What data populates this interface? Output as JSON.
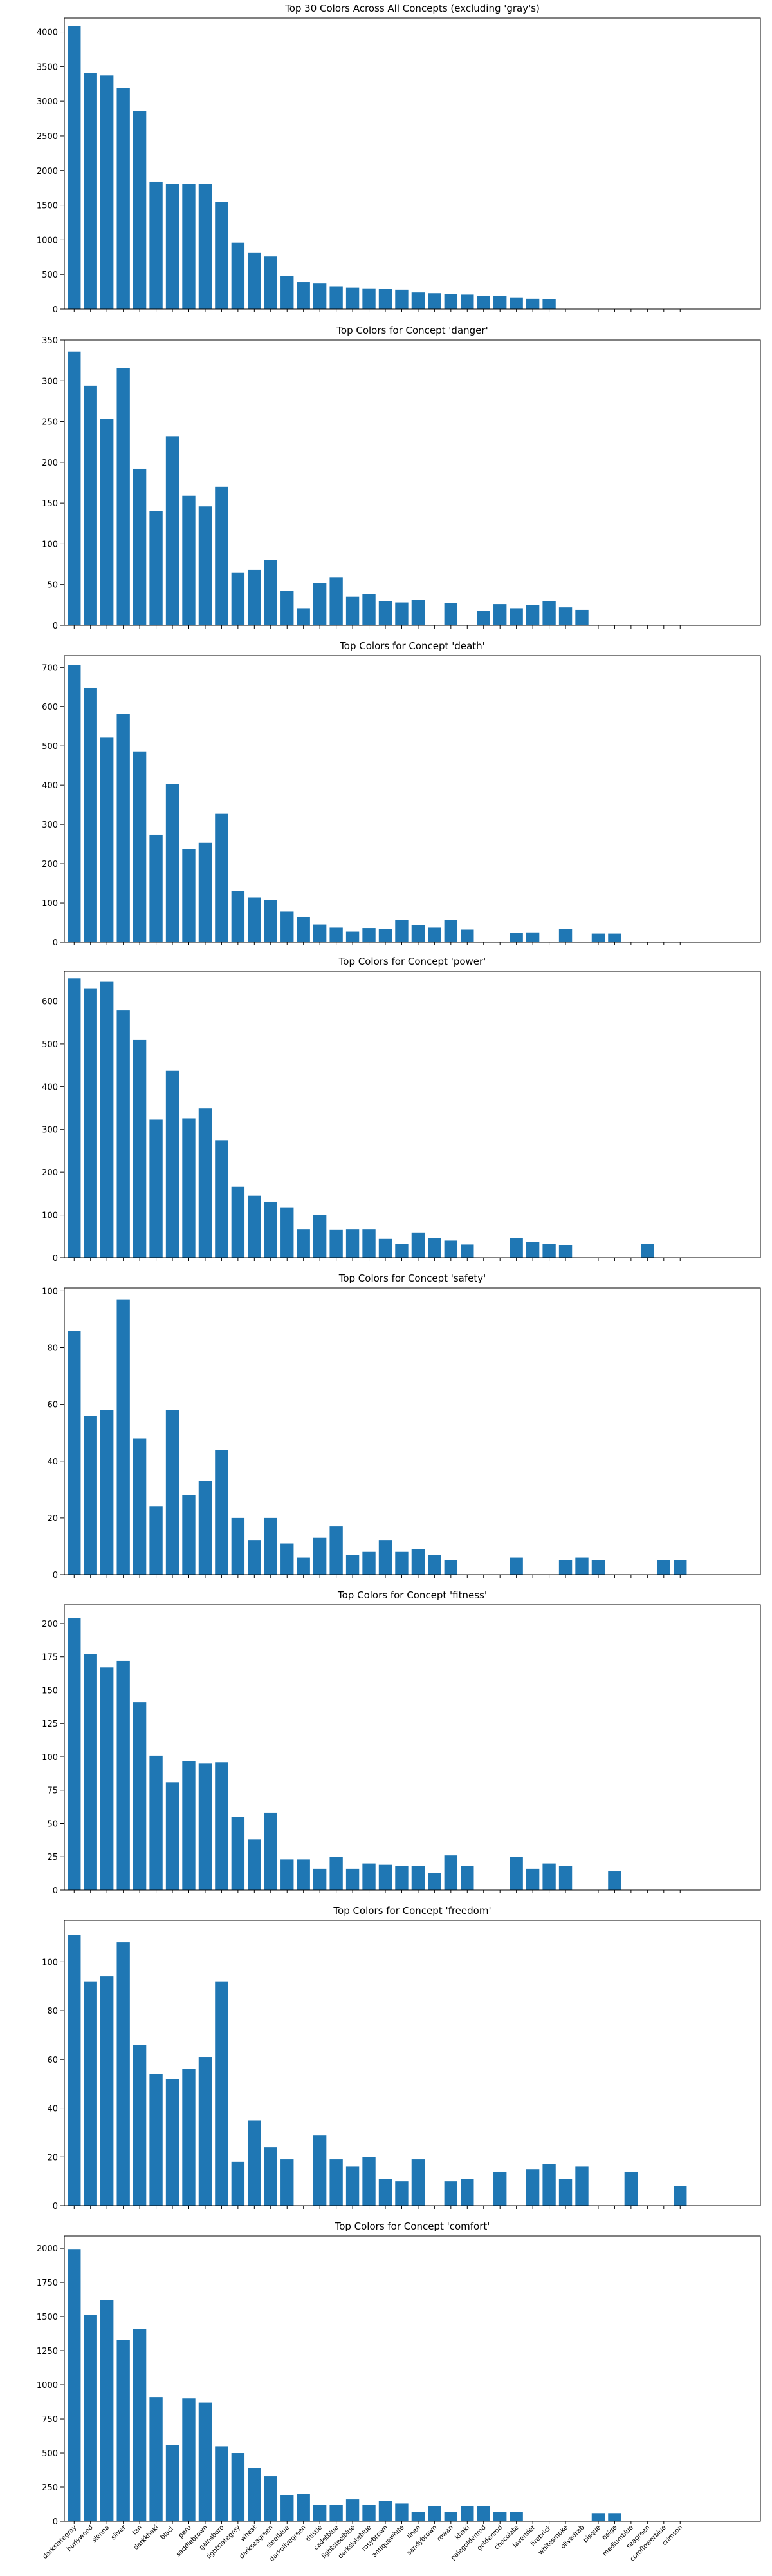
{
  "chart_data": {
    "type": "bar",
    "bar_color": "#1f77b4",
    "categories": [
      "darkslategray",
      "burlywood",
      "sienna",
      "silver",
      "tan",
      "darkkhaki",
      "black",
      "peru",
      "saddlebrown",
      "gainsboro",
      "lightslategrey",
      "wheat",
      "darkseagreen",
      "steelblue",
      "darkolivegreen",
      "thistle",
      "cadetblue",
      "lightsteelblue",
      "darkslateblue",
      "rosybrown",
      "antiquewhite",
      "linen",
      "sandybrown",
      "rowan",
      "khaki",
      "palegoldenrod",
      "goldenrod",
      "chocolate",
      "lavender",
      "firebrick",
      "whitesmoke",
      "olivedrab",
      "bisque",
      "beige",
      "mediumblue",
      "seagreen",
      "cornflowerblue",
      "crimson"
    ],
    "charts": [
      {
        "title": "Top 30 Colors Across All Concepts (excluding 'gray's)",
        "ylim": [
          0,
          4200
        ],
        "yticks": [
          0,
          500,
          1000,
          1500,
          2000,
          2500,
          3000,
          3500,
          4000
        ],
        "show_xlabels": false,
        "values": [
          4080,
          3410,
          3370,
          3190,
          2860,
          1840,
          1810,
          1810,
          1810,
          1550,
          960,
          810,
          760,
          480,
          390,
          370,
          330,
          310,
          300,
          290,
          280,
          240,
          230,
          220,
          210,
          190,
          190,
          170,
          150,
          140,
          0,
          0,
          0,
          0,
          0,
          0,
          0,
          0
        ]
      },
      {
        "title": "Top Colors for Concept 'danger'",
        "ylim": [
          0,
          350
        ],
        "yticks": [
          0,
          50,
          100,
          150,
          200,
          250,
          300,
          350
        ],
        "show_xlabels": false,
        "values": [
          336,
          294,
          253,
          316,
          192,
          140,
          232,
          159,
          146,
          170,
          65,
          68,
          80,
          42,
          21,
          52,
          59,
          35,
          38,
          30,
          28,
          31,
          0,
          27,
          0,
          18,
          26,
          21,
          25,
          30,
          22,
          19,
          0,
          0,
          0,
          0,
          0,
          0
        ]
      },
      {
        "title": "Top Colors for Concept 'death'",
        "ylim": [
          0,
          730
        ],
        "yticks": [
          0,
          100,
          200,
          300,
          400,
          500,
          600,
          700
        ],
        "show_xlabels": false,
        "values": [
          706,
          648,
          521,
          582,
          486,
          274,
          403,
          237,
          253,
          327,
          130,
          114,
          108,
          78,
          64,
          45,
          37,
          27,
          36,
          33,
          57,
          44,
          37,
          57,
          32,
          0,
          0,
          24,
          25,
          0,
          33,
          0,
          22,
          22,
          0,
          0,
          0,
          0
        ]
      },
      {
        "title": "Top Colors for Concept 'power'",
        "ylim": [
          0,
          670
        ],
        "yticks": [
          0,
          100,
          200,
          300,
          400,
          500,
          600
        ],
        "show_xlabels": false,
        "values": [
          653,
          630,
          645,
          578,
          509,
          323,
          437,
          326,
          349,
          275,
          166,
          145,
          131,
          118,
          66,
          100,
          65,
          66,
          66,
          44,
          33,
          59,
          46,
          40,
          31,
          0,
          0,
          46,
          37,
          32,
          30,
          0,
          0,
          0,
          0,
          32,
          0,
          0
        ]
      },
      {
        "title": "Top Colors for Concept 'safety'",
        "ylim": [
          0,
          101
        ],
        "yticks": [
          0,
          20,
          40,
          60,
          80,
          100
        ],
        "show_xlabels": false,
        "values": [
          86,
          56,
          58,
          97,
          48,
          24,
          58,
          28,
          33,
          44,
          20,
          12,
          20,
          11,
          6,
          13,
          17,
          7,
          8,
          12,
          8,
          9,
          7,
          5,
          0,
          0,
          0,
          6,
          0,
          0,
          5,
          6,
          5,
          0,
          0,
          0,
          5,
          5
        ]
      },
      {
        "title": "Top Colors for Concept 'fitness'",
        "ylim": [
          0,
          214
        ],
        "yticks": [
          0,
          25,
          50,
          75,
          100,
          125,
          150,
          175,
          200
        ],
        "show_xlabels": false,
        "values": [
          204,
          177,
          167,
          172,
          141,
          101,
          81,
          97,
          95,
          96,
          55,
          38,
          58,
          23,
          23,
          16,
          25,
          16,
          20,
          19,
          18,
          18,
          13,
          26,
          18,
          0,
          0,
          25,
          16,
          20,
          18,
          0,
          0,
          14,
          0,
          0,
          0,
          0
        ]
      },
      {
        "title": "Top Colors for Concept 'freedom'",
        "ylim": [
          0,
          117
        ],
        "yticks": [
          0,
          20,
          40,
          60,
          80,
          100
        ],
        "show_xlabels": false,
        "values": [
          111,
          92,
          94,
          108,
          66,
          54,
          52,
          56,
          61,
          92,
          18,
          35,
          24,
          19,
          0,
          29,
          19,
          16,
          20,
          11,
          10,
          19,
          0,
          10,
          11,
          0,
          14,
          0,
          15,
          17,
          11,
          16,
          0,
          0,
          14,
          0,
          0,
          8
        ]
      },
      {
        "title": "Top Colors for Concept 'comfort'",
        "ylim": [
          0,
          2090
        ],
        "yticks": [
          0,
          250,
          500,
          750,
          1000,
          1250,
          1500,
          1750,
          2000
        ],
        "show_xlabels": true,
        "values": [
          1990,
          1510,
          1620,
          1330,
          1410,
          910,
          560,
          900,
          870,
          550,
          500,
          390,
          330,
          190,
          200,
          120,
          120,
          160,
          120,
          150,
          130,
          70,
          110,
          70,
          110,
          110,
          70,
          70,
          0,
          0,
          0,
          0,
          60,
          60,
          0,
          0,
          0,
          0
        ]
      }
    ]
  }
}
